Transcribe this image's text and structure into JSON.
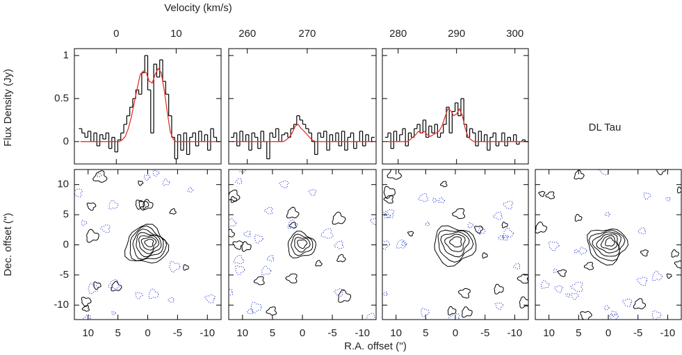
{
  "source": "DL Tau",
  "chart_data": [
    {
      "type": "spectrum",
      "xlabel": "Velocity (km/s)",
      "ylabel": "Flux Density (Jy)",
      "xlim": [
        -7,
        17.5
      ],
      "xticks": [
        0,
        10
      ],
      "ylim": [
        -0.26,
        1.08
      ],
      "yticks": [
        0,
        0.5,
        1
      ],
      "x": [
        -6,
        -5.5,
        -5,
        -4.5,
        -4,
        -3.5,
        -3,
        -2.5,
        -2,
        -1.5,
        -1,
        -0.5,
        0,
        0.5,
        1,
        1.5,
        2,
        2.5,
        3,
        3.5,
        4,
        4.5,
        5,
        5.5,
        6,
        6.5,
        7,
        7.5,
        8,
        8.5,
        9,
        9.5,
        10,
        10.5,
        11,
        11.5,
        12,
        12.5,
        13,
        13.5,
        14,
        14.5,
        15,
        15.5,
        16,
        16.5,
        17
      ],
      "series": [
        {
          "color": "#000000",
          "values": [
            0.15,
            0.1,
            0.05,
            0.12,
            0.0,
            0.1,
            -0.05,
            0.08,
            0.03,
            0.1,
            -0.08,
            0.05,
            -0.12,
            0.02,
            0.1,
            0.2,
            0.3,
            0.4,
            0.5,
            0.6,
            0.55,
            0.8,
            1.0,
            0.6,
            0.1,
            0.9,
            0.75,
            0.95,
            0.7,
            0.55,
            0.3,
            0.05,
            -0.2,
            0.08,
            -0.1,
            0.1,
            -0.15,
            0.05,
            0.1,
            -0.05,
            0.12,
            0.0,
            0.08,
            -0.1,
            0.15,
            0.05,
            0.0
          ]
        },
        {
          "color": "#e8312a",
          "values": [
            0,
            0,
            0,
            0,
            0,
            0,
            0,
            0,
            0,
            0,
            0,
            0,
            0,
            0,
            0.02,
            0.06,
            0.15,
            0.28,
            0.45,
            0.62,
            0.78,
            0.82,
            0.8,
            0.7,
            0.68,
            0.78,
            0.85,
            0.8,
            0.6,
            0.35,
            0.12,
            0.03,
            0,
            0,
            0,
            0,
            0,
            0,
            0,
            0,
            0,
            0,
            0,
            0,
            0,
            0,
            0
          ]
        }
      ]
    },
    {
      "type": "spectrum",
      "xlim": [
        256.9,
        281.5
      ],
      "xticks": [
        260,
        270
      ],
      "ylim": [
        -0.26,
        1.08
      ],
      "yticks": [
        0,
        0.5,
        1
      ],
      "x": [
        257.5,
        258,
        258.5,
        259,
        259.5,
        260,
        260.5,
        261,
        261.5,
        262,
        262.5,
        263,
        263.5,
        264,
        264.5,
        265,
        265.5,
        266,
        266.5,
        267,
        267.5,
        268,
        268.5,
        269,
        269.5,
        270,
        270.5,
        271,
        271.5,
        272,
        272.5,
        273,
        273.5,
        274,
        274.5,
        275,
        275.5,
        276,
        276.5,
        277,
        277.5,
        278,
        278.5,
        279,
        279.5,
        280,
        280.5,
        281
      ],
      "series": [
        {
          "color": "#000000",
          "values": [
            0.05,
            0.1,
            -0.05,
            0.12,
            0.0,
            0.08,
            -0.1,
            0.1,
            0.05,
            -0.08,
            0.12,
            0.0,
            -0.2,
            0.1,
            0.05,
            0.15,
            0.0,
            0.08,
            0.1,
            0.05,
            0.15,
            0.2,
            0.3,
            0.25,
            0.2,
            0.15,
            0.1,
            0.0,
            -0.15,
            0.1,
            0.05,
            0.12,
            -0.1,
            0.08,
            0.0,
            0.1,
            -0.05,
            0.12,
            -0.1,
            0.05,
            0.1,
            -0.08,
            0.0,
            0.12,
            -0.05,
            0.08,
            0.0,
            0.05
          ]
        },
        {
          "color": "#e8312a",
          "values": [
            0,
            0,
            0,
            0,
            0,
            0,
            0,
            0,
            0,
            0,
            0,
            0,
            0,
            0,
            0,
            0,
            0,
            0,
            0.02,
            0.05,
            0.1,
            0.18,
            0.2,
            0.15,
            0.12,
            0.08,
            0.04,
            0.01,
            0,
            0,
            0,
            0,
            0,
            0,
            0,
            0,
            0,
            0,
            0,
            0,
            0,
            0,
            0,
            0,
            0,
            0,
            0,
            0
          ]
        }
      ]
    },
    {
      "type": "spectrum",
      "xlim": [
        277.3,
        302.3
      ],
      "xticks": [
        280,
        290,
        300
      ],
      "ylim": [
        -0.26,
        1.08
      ],
      "yticks": [
        0,
        0.5,
        1
      ],
      "x": [
        278,
        278.5,
        279,
        279.5,
        280,
        280.5,
        281,
        281.5,
        282,
        282.5,
        283,
        283.5,
        284,
        284.5,
        285,
        285.5,
        286,
        286.5,
        287,
        287.5,
        288,
        288.5,
        289,
        289.5,
        290,
        290.5,
        291,
        291.5,
        292,
        292.5,
        293,
        293.5,
        294,
        294.5,
        295,
        295.5,
        296,
        296.5,
        297,
        297.5,
        298,
        298.5,
        299,
        299.5,
        300,
        300.5,
        301,
        301.5,
        302
      ],
      "series": [
        {
          "color": "#000000",
          "values": [
            0.05,
            0.1,
            -0.08,
            0.12,
            0.0,
            0.08,
            0.15,
            -0.05,
            0.1,
            0.05,
            0.15,
            0.2,
            0.1,
            0.25,
            0.05,
            0.18,
            0.1,
            0.2,
            0.05,
            0.1,
            0.2,
            0.4,
            0.1,
            0.35,
            0.45,
            0.3,
            0.5,
            0.2,
            0.05,
            0.15,
            0.1,
            -0.05,
            0.12,
            0.0,
            0.08,
            -0.1,
            0.05,
            0.1,
            -0.05,
            0.0,
            0.1,
            -0.05,
            0.05,
            0.0,
            0.08,
            -0.03,
            0.0,
            0.02,
            0.0
          ]
        },
        {
          "color": "#e8312a",
          "values": [
            0,
            0,
            0,
            0,
            0,
            0,
            0,
            0,
            0.02,
            0.05,
            0.08,
            0.12,
            0.1,
            0.12,
            0.08,
            0.06,
            0.08,
            0.1,
            0.12,
            0.18,
            0.28,
            0.38,
            0.36,
            0.3,
            0.32,
            0.38,
            0.3,
            0.15,
            0.05,
            0.02,
            0,
            0,
            0,
            0,
            0,
            0,
            0,
            0,
            0,
            0,
            0,
            0,
            0,
            0,
            0,
            0,
            0,
            0,
            0
          ]
        }
      ]
    },
    {
      "type": "contour",
      "xlabel": "R.A. offset ('')",
      "ylabel": "Dec. offset ('')",
      "xlim": [
        12.3,
        -12.3
      ],
      "xticks": [
        10,
        5,
        0,
        -5,
        -10
      ],
      "ylim": [
        -12.4,
        12.5
      ],
      "yticks": [
        -10,
        -5,
        0,
        5,
        10
      ]
    },
    {
      "type": "contour",
      "xlim": [
        12.3,
        -12.3
      ],
      "xticks": [
        10,
        5,
        0,
        -5,
        -10
      ],
      "ylim": [
        -12.4,
        12.5
      ],
      "yticks": [
        -10,
        -5,
        0,
        5,
        10
      ]
    },
    {
      "type": "contour",
      "xlim": [
        12.3,
        -12.3
      ],
      "xticks": [
        10,
        5,
        0,
        -5,
        -10
      ],
      "ylim": [
        -12.4,
        12.5
      ],
      "yticks": [
        -10,
        -5,
        0,
        5,
        10
      ]
    },
    {
      "type": "contour",
      "xlim": [
        12.3,
        -12.3
      ],
      "xticks": [
        10,
        5,
        0,
        -5,
        -10
      ],
      "ylim": [
        -12.4,
        12.5
      ],
      "yticks": [
        -10,
        -5,
        0,
        5,
        10
      ]
    }
  ]
}
